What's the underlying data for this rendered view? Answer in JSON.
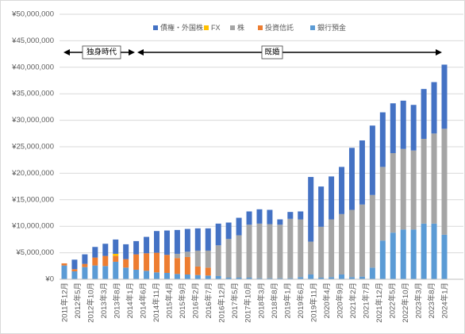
{
  "chart_data": {
    "type": "bar",
    "stacked": true,
    "ylim": [
      0,
      50000000
    ],
    "y_ticks": [
      0,
      5000000,
      10000000,
      15000000,
      20000000,
      25000000,
      30000000,
      35000000,
      40000000,
      45000000,
      50000000
    ],
    "y_tick_labels": [
      "¥0",
      "¥5,000,000",
      "¥10,000,000",
      "¥15,000,000",
      "¥20,000,000",
      "¥25,000,000",
      "¥30,000,000",
      "¥35,000,000",
      "¥40,000,000",
      "¥45,000,000",
      "¥50,000,000"
    ],
    "x_tick_labels": [
      "2011年12月",
      "2012年5月",
      "2012年10月",
      "2013年3月",
      "2013年8月",
      "2014年1月",
      "2014年6月",
      "2014年11月",
      "2015年4月",
      "2015年9月",
      "2016年2月",
      "2016年7月",
      "2016年12月",
      "2017年5月",
      "2017年10月",
      "2018年3月",
      "2018年8月",
      "2019年1月",
      "2019年6月",
      "2019年11月",
      "2020年4月",
      "2020年9月",
      "2021年2月",
      "2021年7月",
      "2021年12月",
      "2022年5月",
      "2022年10月",
      "2023年3月",
      "2023年8月",
      "2024年1月"
    ],
    "grid": "horizontal",
    "legend": "top",
    "series": [
      {
        "name": "銀行預金",
        "color": "#5B9BD5",
        "values": [
          2600000,
          1500000,
          2300000,
          2600000,
          2500000,
          3300000,
          2200000,
          1800000,
          1600000,
          1300000,
          1200000,
          1000000,
          900000,
          800000,
          700000,
          600000,
          300000,
          300000,
          300000,
          200000,
          200000,
          200000,
          200000,
          400000,
          900000,
          300000,
          400000,
          900000,
          400000,
          500000,
          2200000,
          7300000,
          8800000,
          9400000,
          9400000,
          10500000,
          10500000,
          8400000
        ]
      },
      {
        "name": "投資信託",
        "color": "#ED7D31",
        "values": [
          400000,
          400000,
          600000,
          1500000,
          1900000,
          1100000,
          1600000,
          2900000,
          3300000,
          3700000,
          3400000,
          3000000,
          3300000,
          1600000,
          1500000,
          0,
          0,
          0,
          0,
          0,
          0,
          0,
          0,
          0,
          0,
          0,
          0,
          0,
          0,
          0,
          0,
          0,
          0,
          0,
          0,
          0,
          0,
          0
        ]
      },
      {
        "name": "株",
        "color": "#A5A5A5",
        "values": [
          0,
          0,
          0,
          0,
          0,
          0,
          0,
          0,
          0,
          0,
          0,
          800000,
          1000000,
          3000000,
          3200000,
          5800000,
          7300000,
          8000000,
          10000000,
          10300000,
          10200000,
          10100000,
          11200000,
          10900000,
          6200000,
          9600000,
          10900000,
          11400000,
          12700000,
          13600000,
          13700000,
          13900000,
          15000000,
          15200000,
          14900000,
          16000000,
          17000000,
          20000000
        ]
      },
      {
        "name": "FX",
        "color": "#FFC000",
        "values": [
          0,
          0,
          0,
          0,
          0,
          400000,
          0,
          0,
          0,
          0,
          0,
          0,
          0,
          0,
          0,
          0,
          0,
          0,
          0,
          0,
          0,
          0,
          0,
          0,
          0,
          0,
          0,
          0,
          0,
          0,
          0,
          0,
          0,
          0,
          0,
          0,
          0,
          0
        ]
      },
      {
        "name": "債権・外国株",
        "color": "#4472C4",
        "values": [
          0,
          1800000,
          1800000,
          2000000,
          2300000,
          2700000,
          2800000,
          2500000,
          3100000,
          4100000,
          4600000,
          4500000,
          4300000,
          4200000,
          4200000,
          4100000,
          3100000,
          3300000,
          2500000,
          2700000,
          2700000,
          1000000,
          1300000,
          1500000,
          12200000,
          7600000,
          8100000,
          8900000,
          11700000,
          12100000,
          13100000,
          10300000,
          9400000,
          9100000,
          8600000,
          9400000,
          9700000,
          12100000
        ]
      }
    ],
    "annotations": [
      {
        "text": "独身時代"
      },
      {
        "text": "既婚"
      }
    ]
  }
}
